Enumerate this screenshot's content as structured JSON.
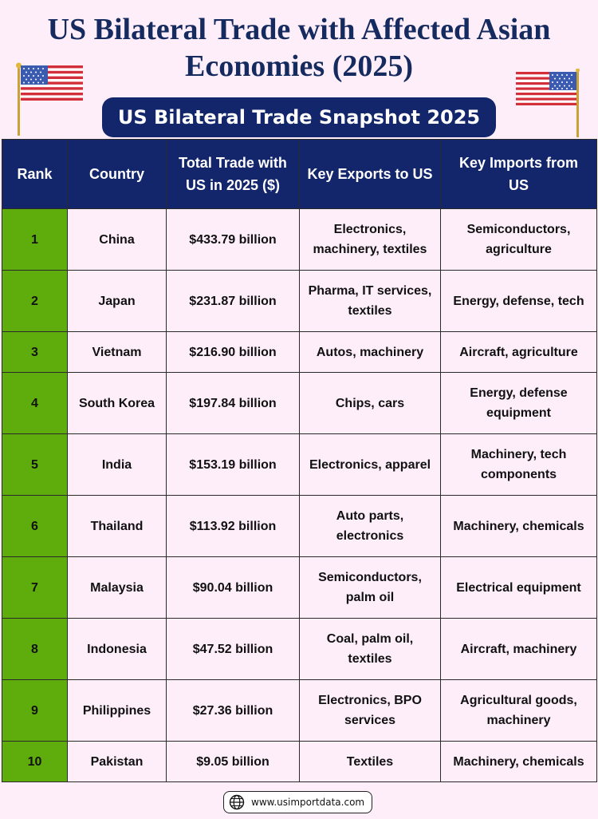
{
  "title_line1": "US Bilateral Trade with Affected Asian",
  "title_line2": "Economies (2025)",
  "subtitle": "US Bilateral Trade Snapshot 2025",
  "headers": {
    "rank": "Rank",
    "country": "Country",
    "total_trade": "Total Trade with US in 2025 ($)",
    "exports": "Key Exports to US",
    "imports": "Key Imports from US"
  },
  "rows": [
    {
      "rank": "1",
      "country": "China",
      "trade": "$433.79 billion",
      "exports": "Electronics, machinery, textiles",
      "imports": "Semiconductors, agriculture"
    },
    {
      "rank": "2",
      "country": "Japan",
      "trade": "$231.87 billion",
      "exports": "Pharma, IT services, textiles",
      "imports": "Energy, defense, tech"
    },
    {
      "rank": "3",
      "country": "Vietnam",
      "trade": "$216.90 billion",
      "exports": "Autos, machinery",
      "imports": "Aircraft, agriculture"
    },
    {
      "rank": "4",
      "country": "South Korea",
      "trade": "$197.84 billion",
      "exports": "Chips, cars",
      "imports": "Energy, defense equipment"
    },
    {
      "rank": "5",
      "country": "India",
      "trade": "$153.19 billion",
      "exports": "Electronics, apparel",
      "imports": "Machinery, tech components"
    },
    {
      "rank": "6",
      "country": "Thailand",
      "trade": "$113.92 billion",
      "exports": "Auto parts, electronics",
      "imports": "Machinery, chemicals"
    },
    {
      "rank": "7",
      "country": "Malaysia",
      "trade": "$90.04 billion",
      "exports": "Semiconductors, palm oil",
      "imports": "Electrical equipment"
    },
    {
      "rank": "8",
      "country": "Indonesia",
      "trade": "$47.52 billion",
      "exports": "Coal, palm oil, textiles",
      "imports": "Aircraft, machinery"
    },
    {
      "rank": "9",
      "country": "Philippines",
      "trade": "$27.36 billion",
      "exports": "Electronics, BPO services",
      "imports": "Agricultural goods, machinery"
    },
    {
      "rank": "10",
      "country": "Pakistan",
      "trade": "$9.05 billion",
      "exports": "Textiles",
      "imports": "Machinery, chemicals"
    }
  ],
  "footer": "www.usimportdata.com",
  "colors": {
    "navy": "#13256b",
    "rank_green": "#5fad0d",
    "background": "#fdeefa"
  },
  "icons": {
    "flag": "us-flag-icon",
    "footer": "globe-icon"
  }
}
